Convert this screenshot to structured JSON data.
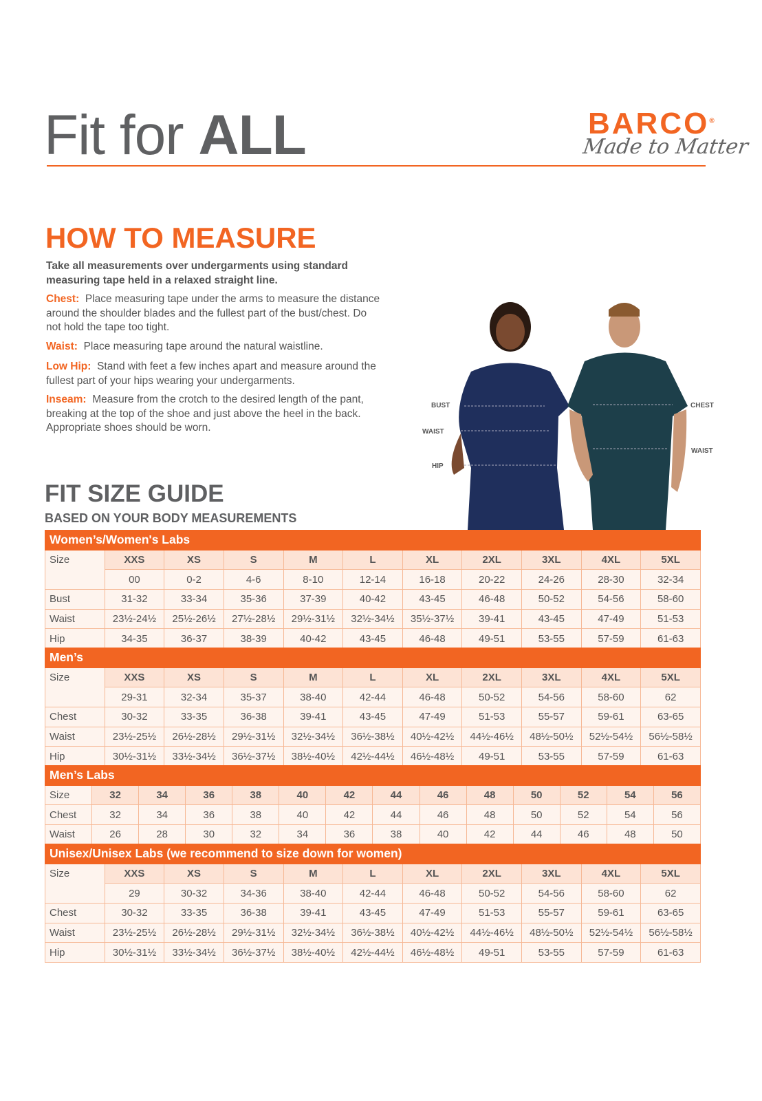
{
  "header": {
    "title_light": "Fit for ",
    "title_bold": "ALL",
    "brand": "BARCO",
    "brand_mark": "®",
    "tagline": "Made to Matter"
  },
  "measure": {
    "title_a": "HOW TO ",
    "title_b": "MEASURE",
    "intro": "Take all measurements over undergarments using standard measuring tape held in a relaxed straight line.",
    "items": [
      {
        "label": "Chest:",
        "text": "Place measuring tape under the arms to measure the distance around the shoulder blades and the fullest part of the bust/chest. Do not hold the tape too tight."
      },
      {
        "label": "Waist:",
        "text": "Place measuring tape around the natural waistline."
      },
      {
        "label": "Low Hip:",
        "text": "Stand with feet a few inches apart and measure around the fullest part of your hips wearing your undergarments."
      },
      {
        "label": "Inseam:",
        "text": "Measure from the crotch to the desired length of the pant, breaking at the top of the shoe and just above the heel in the back. Appropriate shoes should be worn."
      }
    ]
  },
  "photo_labels": {
    "bust": "BUST",
    "waist_w": "WAIST",
    "hip": "HIP",
    "chest": "CHEST",
    "waist_m": "WAIST"
  },
  "guide": {
    "title": "FIT SIZE GUIDE",
    "subtitle": "BASED ON YOUR BODY MEASUREMENTS"
  },
  "colors": {
    "accent": "#f26522",
    "header_cell": "#fde3d5",
    "body_cell": "#fef4ee",
    "woman_scrubs": "#1f2f5c",
    "man_scrubs": "#1d3f4a"
  },
  "tables": [
    {
      "name": "Women’s/Women's Labs",
      "size_label": "Size",
      "sizes": [
        "XXS",
        "XS",
        "S",
        "M",
        "L",
        "XL",
        "2XL",
        "3XL",
        "4XL",
        "5XL"
      ],
      "rows": [
        {
          "label": "",
          "values": [
            "00",
            "0-2",
            "4-6",
            "8-10",
            "12-14",
            "16-18",
            "20-22",
            "24-26",
            "28-30",
            "32-34"
          ]
        },
        {
          "label": "Bust",
          "values": [
            "31-32",
            "33-34",
            "35-36",
            "37-39",
            "40-42",
            "43-45",
            "46-48",
            "50-52",
            "54-56",
            "58-60"
          ]
        },
        {
          "label": "Waist",
          "values": [
            "23½-24½",
            "25½-26½",
            "27½-28½",
            "29½-31½",
            "32½-34½",
            "35½-37½",
            "39-41",
            "43-45",
            "47-49",
            "51-53"
          ]
        },
        {
          "label": "Hip",
          "values": [
            "34-35",
            "36-37",
            "38-39",
            "40-42",
            "43-45",
            "46-48",
            "49-51",
            "53-55",
            "57-59",
            "61-63"
          ]
        }
      ]
    },
    {
      "name": "Men’s",
      "size_label": "Size",
      "sizes": [
        "XXS",
        "XS",
        "S",
        "M",
        "L",
        "XL",
        "2XL",
        "3XL",
        "4XL",
        "5XL"
      ],
      "rows": [
        {
          "label": "",
          "values": [
            "29-31",
            "32-34",
            "35-37",
            "38-40",
            "42-44",
            "46-48",
            "50-52",
            "54-56",
            "58-60",
            "62"
          ]
        },
        {
          "label": "Chest",
          "values": [
            "30-32",
            "33-35",
            "36-38",
            "39-41",
            "43-45",
            "47-49",
            "51-53",
            "55-57",
            "59-61",
            "63-65"
          ]
        },
        {
          "label": "Waist",
          "values": [
            "23½-25½",
            "26½-28½",
            "29½-31½",
            "32½-34½",
            "36½-38½",
            "40½-42½",
            "44½-46½",
            "48½-50½",
            "52½-54½",
            "56½-58½"
          ]
        },
        {
          "label": "Hip",
          "values": [
            "30½-31½",
            "33½-34½",
            "36½-37½",
            "38½-40½",
            "42½-44½",
            "46½-48½",
            "49-51",
            "53-55",
            "57-59",
            "61-63"
          ]
        }
      ]
    },
    {
      "name": "Men’s Labs",
      "size_label": "Size",
      "sizes": [
        "32",
        "34",
        "36",
        "38",
        "40",
        "42",
        "44",
        "46",
        "48",
        "50",
        "52",
        "54",
        "56"
      ],
      "rows": [
        {
          "label": "Chest",
          "values": [
            "32",
            "34",
            "36",
            "38",
            "40",
            "42",
            "44",
            "46",
            "48",
            "50",
            "52",
            "54",
            "56"
          ]
        },
        {
          "label": "Waist",
          "values": [
            "26",
            "28",
            "30",
            "32",
            "34",
            "36",
            "38",
            "40",
            "42",
            "44",
            "46",
            "48",
            "50"
          ]
        }
      ]
    },
    {
      "name": "Unisex/Unisex Labs (we recommend to size down for women)",
      "size_label": "Size",
      "sizes": [
        "XXS",
        "XS",
        "S",
        "M",
        "L",
        "XL",
        "2XL",
        "3XL",
        "4XL",
        "5XL"
      ],
      "rows": [
        {
          "label": "",
          "values": [
            "29",
            "30-32",
            "34-36",
            "38-40",
            "42-44",
            "46-48",
            "50-52",
            "54-56",
            "58-60",
            "62"
          ]
        },
        {
          "label": "Chest",
          "values": [
            "30-32",
            "33-35",
            "36-38",
            "39-41",
            "43-45",
            "47-49",
            "51-53",
            "55-57",
            "59-61",
            "63-65"
          ]
        },
        {
          "label": "Waist",
          "values": [
            "23½-25½",
            "26½-28½",
            "29½-31½",
            "32½-34½",
            "36½-38½",
            "40½-42½",
            "44½-46½",
            "48½-50½",
            "52½-54½",
            "56½-58½"
          ]
        },
        {
          "label": "Hip",
          "values": [
            "30½-31½",
            "33½-34½",
            "36½-37½",
            "38½-40½",
            "42½-44½",
            "46½-48½",
            "49-51",
            "53-55",
            "57-59",
            "61-63"
          ]
        }
      ]
    }
  ]
}
